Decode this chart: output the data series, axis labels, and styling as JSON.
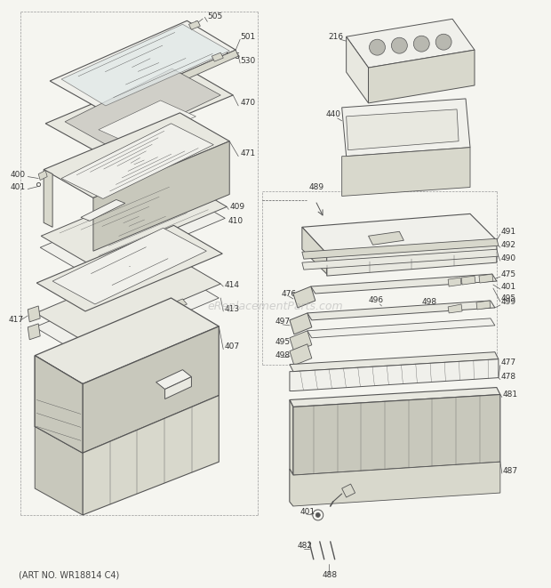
{
  "bg_color": "#f5f5f0",
  "fig_width": 6.2,
  "fig_height": 6.61,
  "dpi": 100,
  "footer": "(ART NO. WR18814 C4)",
  "watermark": "eReplacementParts.com",
  "lc": "#555555",
  "fc_light": "#e8e8e0",
  "fc_mid": "#d8d8cc",
  "fc_dark": "#c8c8bc",
  "fc_white": "#f0f0eb",
  "label_fs": 6.5,
  "label_color": "#333333"
}
